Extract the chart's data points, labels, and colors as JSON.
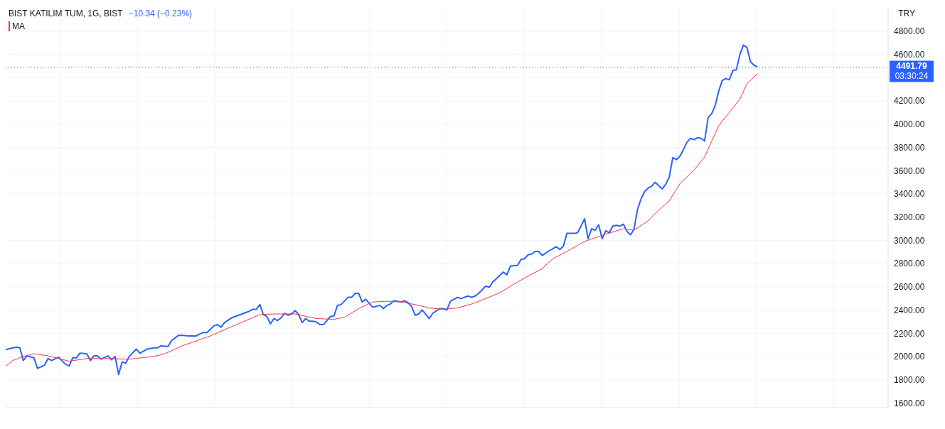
{
  "chart_data": {
    "type": "line",
    "title": "BIST KATILIM TUM, 1G, BIST",
    "subtitle": "−10.34 (−0.23%)",
    "ylabel": "TRY",
    "annotations": [
      "03:30:24"
    ],
    "categories": [
      null,
      null,
      null,
      null,
      null,
      null,
      null,
      null,
      null,
      null,
      null,
      null,
      null,
      null,
      null,
      null,
      null,
      null,
      null,
      null,
      null,
      null,
      null,
      null,
      null,
      null,
      null,
      null,
      null,
      null,
      null,
      null,
      null,
      null,
      null,
      null,
      null,
      null,
      null,
      null,
      null,
      null,
      null,
      null,
      null,
      null,
      null,
      null,
      null,
      null,
      null,
      null,
      null,
      null,
      null,
      null,
      null,
      null,
      null,
      null,
      null,
      null,
      null,
      null,
      null,
      null,
      null,
      null,
      null,
      null,
      null,
      null,
      null,
      null,
      null,
      null,
      null,
      null,
      null,
      null,
      null,
      null,
      null,
      null,
      null,
      null,
      null,
      null,
      null,
      null,
      null,
      null,
      null,
      null,
      null,
      null,
      null,
      null,
      null,
      null,
      null,
      null,
      null,
      null,
      null,
      null,
      null,
      null,
      null,
      null,
      null,
      null,
      null,
      null,
      null,
      null,
      null,
      null,
      null,
      null,
      null,
      null,
      null,
      null,
      null,
      null,
      null,
      null,
      null,
      null,
      null,
      null,
      null,
      null,
      null,
      null,
      null,
      null,
      null,
      null,
      null,
      null,
      null,
      null,
      null,
      null,
      null,
      null,
      null,
      null,
      null,
      null,
      null,
      null,
      null,
      null,
      null,
      null,
      null,
      null,
      null,
      null,
      null,
      null,
      null,
      null,
      null,
      null,
      null,
      null,
      null,
      null,
      null,
      null,
      null,
      null,
      null,
      null,
      null,
      null,
      null,
      null,
      null,
      null,
      null,
      null,
      null,
      null,
      null,
      null,
      null,
      null,
      null,
      null,
      null,
      null,
      null,
      null,
      null,
      null,
      null,
      null,
      null,
      null,
      null,
      null,
      null,
      null,
      null,
      null,
      null,
      null,
      null,
      null,
      null,
      null,
      null,
      null,
      null,
      null,
      null,
      null,
      null,
      null,
      null,
      null,
      null,
      null,
      null,
      null,
      null,
      null,
      null,
      null,
      null,
      null,
      null,
      null,
      null,
      null,
      null,
      null,
      null,
      null,
      null,
      null,
      null,
      null,
      null,
      null,
      null
    ],
    "series": [
      {
        "color": "#2962ff",
        "values": [
          2060,
          null,
          null,
          2081,
          2075,
          1966,
          2006,
          null,
          1989,
          1898,
          null,
          1926,
          1983,
          1966,
          null,
          1995,
          null,
          1932,
          1920,
          1989,
          1989,
          2029,
          null,
          2024,
          1966,
          2006,
          2006,
          1978,
          null,
          2006,
          1972,
          2001,
          1846,
          1955,
          1943,
          2001,
          null,
          2064,
          2029,
          null,
          2064,
          null,
          2075,
          2075,
          2092,
          null,
          2087,
          2138,
          null,
          2184,
          null,
          null,
          2178,
          null,
          2178,
          2195,
          2207,
          2207,
          null,
          2264,
          2275,
          2253,
          2293,
          null,
          2333,
          null,
          2356,
          null,
          null,
          2390,
          2407,
          2407,
          2447,
          2361,
          2344,
          2281,
          2327,
          2310,
          2333,
          2373,
          2356,
          2367,
          2396,
          2361,
          2293,
          2327,
          2304,
          2304,
          2298,
          2275,
          2275,
          null,
          2344,
          2350,
          2441,
          2447,
          null,
          2510,
          2510,
          2544,
          2544,
          2470,
          2493,
          null,
          2424,
          null,
          2441,
          2413,
          2441,
          2453,
          2481,
          null,
          2470,
          2481,
          2464,
          2430,
          2356,
          2367,
          2401,
          null,
          2327,
          2373,
          null,
          2413,
          2413,
          2401,
          2476,
          null,
          2510,
          2499,
          null,
          2521,
          2510,
          2521,
          2544,
          null,
          2607,
          2596,
          2642,
          2670,
          null,
          2727,
          2704,
          2779,
          null,
          2784,
          2836,
          2842,
          2876,
          2882,
          2905,
          2905,
          2871,
          null,
          2911,
          2928,
          2945,
          2922,
          2951,
          3060,
          null,
          3060,
          3065,
          3123,
          3186,
          3014,
          3100,
          3088,
          3134,
          3014,
          3083,
          3065,
          3123,
          3129,
          3123,
          3140,
          3077,
          3048,
          3094,
          3266,
          3357,
          3420,
          3449,
          3466,
          3500,
          3472,
          3443,
          3483,
          3546,
          3712,
          3695,
          3724,
          3781,
          3844,
          3878,
          3867,
          3884,
          3878,
          3855,
          4056,
          4090,
          4159,
          4285,
          4376,
          4393,
          4382,
          4462,
          4468,
          4600,
          4680,
          4662,
          4537,
          4508,
          4491.79,
          null,
          null,
          null,
          null,
          null,
          null,
          null,
          null,
          null,
          null,
          null,
          null,
          null,
          null,
          null,
          null,
          null,
          null,
          null,
          null,
          null,
          null,
          null,
          null,
          null,
          null,
          null,
          null,
          null,
          null,
          null,
          null,
          null,
          null,
          null,
          null,
          null
        ]
      },
      {
        "name": "MA",
        "color": "#f23645",
        "values": [
          1917,
          null,
          1966,
          null,
          null,
          2001,
          null,
          null,
          2024,
          null,
          null,
          null,
          2006,
          null,
          null,
          null,
          null,
          null,
          1960,
          null,
          null,
          null,
          null,
          1983,
          null,
          null,
          null,
          null,
          1983,
          null,
          null,
          null,
          null,
          null,
          null,
          1978,
          null,
          null,
          null,
          null,
          null,
          null,
          2001,
          null,
          null,
          2024,
          null,
          null,
          null,
          null,
          2092,
          null,
          null,
          null,
          null,
          null,
          null,
          null,
          2178,
          null,
          null,
          null,
          null,
          null,
          2258,
          null,
          null,
          null,
          null,
          null,
          null,
          null,
          2361,
          null,
          null,
          null,
          2367,
          null,
          null,
          null,
          null,
          null,
          2367,
          null,
          null,
          null,
          null,
          null,
          2327,
          null,
          null,
          null,
          null,
          2321,
          null,
          null,
          2338,
          null,
          null,
          null,
          2413,
          null,
          null,
          null,
          2470,
          null,
          null,
          null,
          2476,
          null,
          null,
          null,
          2470,
          null,
          null,
          null,
          null,
          2441,
          null,
          null,
          2418,
          null,
          null,
          null,
          2407,
          null,
          null,
          null,
          2418,
          null,
          null,
          null,
          2453,
          null,
          null,
          null,
          2499,
          null,
          null,
          null,
          2550,
          null,
          null,
          null,
          2624,
          null,
          null,
          null,
          2693,
          null,
          null,
          null,
          2756,
          null,
          null,
          2842,
          null,
          null,
          2888,
          null,
          null,
          null,
          null,
          null,
          2991,
          null,
          null,
          null,
          null,
          null,
          3054,
          null,
          null,
          null,
          null,
          3100,
          null,
          null,
          3088,
          null,
          null,
          null,
          3168,
          null,
          null,
          3260,
          null,
          null,
          3340,
          null,
          null,
          3489,
          null,
          null,
          null,
          3604,
          null,
          null,
          3718,
          null,
          null,
          null,
          3987,
          null,
          null,
          4101,
          null,
          null,
          4216,
          null,
          4348,
          null,
          null,
          4434,
          null,
          null,
          null,
          null,
          null,
          null,
          null,
          null,
          null,
          null,
          null,
          null,
          null,
          null,
          null,
          null,
          null,
          null,
          null,
          null,
          null,
          null,
          null,
          null,
          null,
          null,
          null,
          null,
          null,
          null,
          null,
          null,
          null,
          null,
          null,
          null,
          null
        ]
      }
    ],
    "ylim": [
      1560,
      5020
    ],
    "yticks": [
      {
        "value": 1600,
        "label": "1600.00"
      },
      {
        "value": 1800,
        "label": "1800.00"
      },
      {
        "value": 2000,
        "label": "2000.00"
      },
      {
        "value": 2200,
        "label": "2200.00"
      },
      {
        "value": 2400,
        "label": "2400.00"
      },
      {
        "value": 2600,
        "label": "2600.00"
      },
      {
        "value": 2800,
        "label": "2800.00"
      },
      {
        "value": 3000,
        "label": "3000.00"
      },
      {
        "value": 3200,
        "label": "3200.00"
      },
      {
        "value": 3400,
        "label": "3400.00"
      },
      {
        "value": 3600,
        "label": "3600.00"
      },
      {
        "value": 3800,
        "label": "3800.00"
      },
      {
        "value": 4000,
        "label": "4000.00"
      },
      {
        "value": 4200,
        "label": "4200.00"
      },
      {
        "value": 4400,
        "label": null
      },
      {
        "value": 4600,
        "label": "4600.00"
      },
      {
        "value": 4800,
        "label": "4800.00"
      }
    ],
    "ref_lines": [
      {
        "axis": "y",
        "value": 4491.79,
        "label": "4491.79",
        "color": "#2962ff",
        "line_style": "dotted"
      }
    ],
    "grid": true,
    "legend": "top left",
    "marker": "none",
    "line_style": "solid"
  }
}
